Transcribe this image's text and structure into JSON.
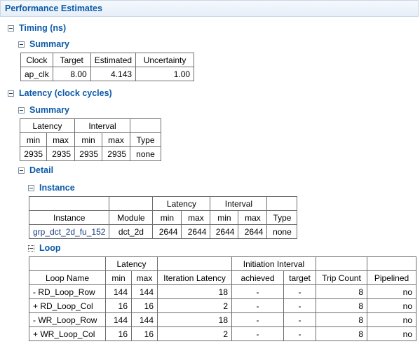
{
  "title": "Performance Estimates",
  "timing": {
    "heading": "Timing (ns)",
    "summary_heading": "Summary",
    "headers": [
      "Clock",
      "Target",
      "Estimated",
      "Uncertainty"
    ],
    "row": [
      "ap_clk",
      "8.00",
      "4.143",
      "1.00"
    ]
  },
  "latency": {
    "heading": "Latency (clock cycles)",
    "summary_heading": "Summary",
    "group_headers": [
      "Latency",
      "Interval"
    ],
    "sub_headers": [
      "min",
      "max",
      "min",
      "max",
      "Type"
    ],
    "row": [
      "2935",
      "2935",
      "2935",
      "2935",
      "none"
    ],
    "detail_heading": "Detail",
    "instance": {
      "heading": "Instance",
      "group_headers": [
        "Latency",
        "Interval"
      ],
      "headers": [
        "Instance",
        "Module",
        "min",
        "max",
        "min",
        "max",
        "Type"
      ],
      "row": [
        "grp_dct_2d_fu_152",
        "dct_2d",
        "2644",
        "2644",
        "2644",
        "2644",
        "none"
      ]
    },
    "loop": {
      "heading": "Loop",
      "group_headers": [
        "Latency",
        "Initiation Interval"
      ],
      "headers": [
        "Loop Name",
        "min",
        "max",
        "Iteration Latency",
        "achieved",
        "target",
        "Trip Count",
        "Pipelined"
      ],
      "rows": [
        [
          "- RD_Loop_Row",
          "144",
          "144",
          "18",
          "-",
          "-",
          "8",
          "no"
        ],
        [
          "+ RD_Loop_Col",
          "16",
          "16",
          "2",
          "-",
          "-",
          "8",
          "no"
        ],
        [
          "- WR_Loop_Row",
          "144",
          "144",
          "18",
          "-",
          "-",
          "8",
          "no"
        ],
        [
          "+ WR_Loop_Col",
          "16",
          "16",
          "2",
          "-",
          "-",
          "8",
          "no"
        ]
      ]
    }
  }
}
